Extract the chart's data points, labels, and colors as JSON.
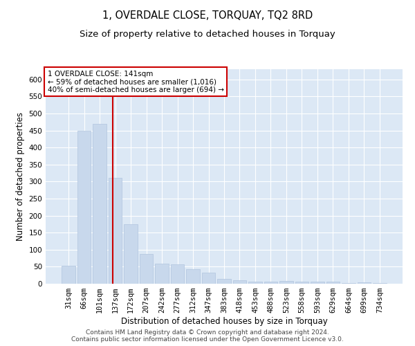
{
  "title": "1, OVERDALE CLOSE, TORQUAY, TQ2 8RD",
  "subtitle": "Size of property relative to detached houses in Torquay",
  "xlabel": "Distribution of detached houses by size in Torquay",
  "ylabel": "Number of detached properties",
  "categories": [
    "31sqm",
    "66sqm",
    "101sqm",
    "137sqm",
    "172sqm",
    "207sqm",
    "242sqm",
    "277sqm",
    "312sqm",
    "347sqm",
    "383sqm",
    "418sqm",
    "453sqm",
    "488sqm",
    "523sqm",
    "558sqm",
    "593sqm",
    "629sqm",
    "664sqm",
    "699sqm",
    "734sqm"
  ],
  "values": [
    53,
    450,
    470,
    310,
    175,
    88,
    58,
    57,
    43,
    32,
    15,
    10,
    7,
    7,
    8,
    6,
    6,
    6,
    3,
    5,
    3
  ],
  "bar_color": "#c8d8ec",
  "bar_edge_color": "#b0c4de",
  "vline_color": "#cc0000",
  "vline_x": 2.85,
  "annotation_text": "1 OVERDALE CLOSE: 141sqm\n← 59% of detached houses are smaller (1,016)\n40% of semi-detached houses are larger (694) →",
  "annotation_box_color": "#ffffff",
  "annotation_box_edge_color": "#cc0000",
  "ylim_max": 630,
  "yticks": [
    0,
    50,
    100,
    150,
    200,
    250,
    300,
    350,
    400,
    450,
    500,
    550,
    600
  ],
  "plot_bg_color": "#dce8f5",
  "grid_color": "#ffffff",
  "footer_line1": "Contains HM Land Registry data © Crown copyright and database right 2024.",
  "footer_line2": "Contains public sector information licensed under the Open Government Licence v3.0.",
  "title_fontsize": 10.5,
  "subtitle_fontsize": 9.5,
  "xlabel_fontsize": 8.5,
  "ylabel_fontsize": 8.5,
  "tick_fontsize": 7.5,
  "annotation_fontsize": 7.5,
  "footer_fontsize": 6.5
}
